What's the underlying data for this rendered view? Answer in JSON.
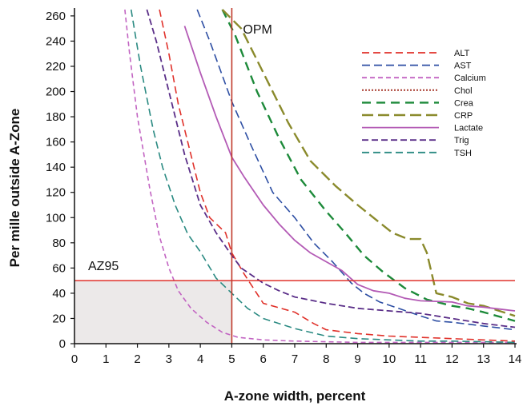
{
  "chart_data": {
    "type": "line",
    "xlabel": "A-zone width, percent",
    "ylabel": "Per mille outside A-Zone",
    "xlim": [
      0,
      14
    ],
    "ylim": [
      0,
      265
    ],
    "x_ticks": [
      "0",
      "1",
      "2",
      "3",
      "4",
      "5",
      "6",
      "7",
      "8",
      "9",
      "10",
      "11",
      "12",
      "13",
      "14"
    ],
    "y_ticks": [
      "0",
      "20",
      "40",
      "60",
      "80",
      "100",
      "120",
      "140",
      "160",
      "180",
      "200",
      "220",
      "240",
      "260"
    ],
    "annotations": {
      "opm_label": "OPM",
      "opm_x": 5,
      "az95_label": "AZ95",
      "az95_y": 50,
      "az95_region": {
        "x": [
          0,
          5
        ],
        "y": [
          0,
          50
        ]
      }
    },
    "legend_position": "top-right",
    "series": [
      {
        "name": "ALT",
        "color": "#e0312a",
        "dash": "9,5",
        "width": 1.6,
        "points": [
          [
            2.7,
            265
          ],
          [
            3,
            230
          ],
          [
            3.3,
            190
          ],
          [
            3.6,
            160
          ],
          [
            4,
            120
          ],
          [
            4.3,
            100
          ],
          [
            4.8,
            88
          ],
          [
            5,
            72
          ],
          [
            5.4,
            55
          ],
          [
            6,
            32
          ],
          [
            7,
            25
          ],
          [
            7.6,
            16
          ],
          [
            8,
            11
          ],
          [
            9,
            8
          ],
          [
            10,
            6
          ],
          [
            11,
            5
          ],
          [
            12,
            4
          ],
          [
            13,
            3
          ],
          [
            14,
            2
          ]
        ]
      },
      {
        "name": "AST",
        "color": "#2d4ea3",
        "dash": "10,5",
        "width": 1.6,
        "points": [
          [
            3.9,
            265
          ],
          [
            4.3,
            240
          ],
          [
            5,
            192
          ],
          [
            5.6,
            158
          ],
          [
            6.3,
            120
          ],
          [
            7,
            100
          ],
          [
            7.6,
            80
          ],
          [
            8.2,
            65
          ],
          [
            8.8,
            48
          ],
          [
            9.2,
            40
          ],
          [
            9.7,
            33
          ],
          [
            10.3,
            28
          ],
          [
            11,
            22
          ],
          [
            11.5,
            18
          ],
          [
            12,
            17
          ],
          [
            13,
            14
          ],
          [
            14,
            11
          ]
        ]
      },
      {
        "name": "Calcium",
        "color": "#c264c2",
        "dash": "6,4",
        "width": 1.6,
        "points": [
          [
            1.6,
            265
          ],
          [
            1.75,
            230
          ],
          [
            2,
            180
          ],
          [
            2.4,
            122
          ],
          [
            2.7,
            85
          ],
          [
            3,
            60
          ],
          [
            3.3,
            42
          ],
          [
            3.7,
            28
          ],
          [
            4.2,
            17
          ],
          [
            4.7,
            9
          ],
          [
            5.2,
            5
          ],
          [
            6,
            3
          ],
          [
            7,
            2
          ],
          [
            9,
            1
          ],
          [
            11,
            1
          ],
          [
            14,
            1
          ]
        ]
      },
      {
        "name": "Chol",
        "color": "#a83a2e",
        "dash": "2,2",
        "width": 2.0,
        "points": []
      },
      {
        "name": "Crea",
        "color": "#1d8a3a",
        "dash": "11,7",
        "width": 2.4,
        "points": [
          [
            4.7,
            265
          ],
          [
            5.1,
            245
          ],
          [
            5.8,
            200
          ],
          [
            6.5,
            163
          ],
          [
            7.2,
            130
          ],
          [
            8,
            105
          ],
          [
            8.6,
            88
          ],
          [
            9.2,
            70
          ],
          [
            9.8,
            57
          ],
          [
            10.5,
            44
          ],
          [
            11.2,
            35
          ],
          [
            12,
            30
          ],
          [
            12.5,
            28
          ],
          [
            13,
            25
          ],
          [
            14,
            18
          ]
        ]
      },
      {
        "name": "CRP",
        "color": "#8a8a2c",
        "dash": "14,6",
        "width": 2.4,
        "points": [
          [
            4.7,
            265
          ],
          [
            5.3,
            250
          ],
          [
            6,
            215
          ],
          [
            6.8,
            175
          ],
          [
            7.5,
            145
          ],
          [
            8.3,
            125
          ],
          [
            9,
            110
          ],
          [
            9.6,
            98
          ],
          [
            10.1,
            88
          ],
          [
            10.6,
            83
          ],
          [
            11,
            83
          ],
          [
            11.2,
            72
          ],
          [
            11.5,
            40
          ],
          [
            12,
            37
          ],
          [
            12.5,
            32
          ],
          [
            13,
            30
          ],
          [
            14,
            22
          ]
        ]
      },
      {
        "name": "Lactate",
        "color": "#b35ab5",
        "dash": "",
        "width": 1.8,
        "points": [
          [
            3.5,
            252
          ],
          [
            4,
            215
          ],
          [
            4.5,
            180
          ],
          [
            5,
            148
          ],
          [
            5.4,
            132
          ],
          [
            6,
            110
          ],
          [
            6.5,
            95
          ],
          [
            7,
            82
          ],
          [
            7.5,
            72
          ],
          [
            8,
            65
          ],
          [
            8.5,
            58
          ],
          [
            9,
            47
          ],
          [
            9.5,
            42
          ],
          [
            10,
            40
          ],
          [
            10.5,
            36
          ],
          [
            11,
            34
          ],
          [
            12,
            33
          ],
          [
            12.5,
            30
          ],
          [
            13,
            29
          ],
          [
            14,
            26
          ]
        ]
      },
      {
        "name": "Trig",
        "color": "#5a2e88",
        "dash": "8,4",
        "width": 1.8,
        "points": [
          [
            2.3,
            265
          ],
          [
            2.6,
            240
          ],
          [
            3,
            200
          ],
          [
            3.5,
            150
          ],
          [
            4,
            110
          ],
          [
            4.5,
            88
          ],
          [
            5,
            70
          ],
          [
            5.3,
            60
          ],
          [
            6,
            48
          ],
          [
            6.5,
            42
          ],
          [
            7,
            37
          ],
          [
            8,
            32
          ],
          [
            9,
            28
          ],
          [
            10,
            26
          ],
          [
            11,
            24
          ],
          [
            12,
            20
          ],
          [
            13,
            16
          ],
          [
            14,
            13
          ]
        ]
      },
      {
        "name": "TSH",
        "color": "#2a8a82",
        "dash": "9,5",
        "width": 1.6,
        "points": [
          [
            1.8,
            265
          ],
          [
            2.1,
            220
          ],
          [
            2.5,
            170
          ],
          [
            2.8,
            140
          ],
          [
            3.2,
            110
          ],
          [
            3.6,
            87
          ],
          [
            4,
            73
          ],
          [
            4.5,
            52
          ],
          [
            5,
            40
          ],
          [
            5.5,
            28
          ],
          [
            6,
            20
          ],
          [
            7,
            12
          ],
          [
            8,
            6
          ],
          [
            9,
            4
          ],
          [
            10,
            3
          ],
          [
            11,
            2
          ],
          [
            12,
            2
          ],
          [
            14,
            1
          ]
        ]
      }
    ]
  }
}
